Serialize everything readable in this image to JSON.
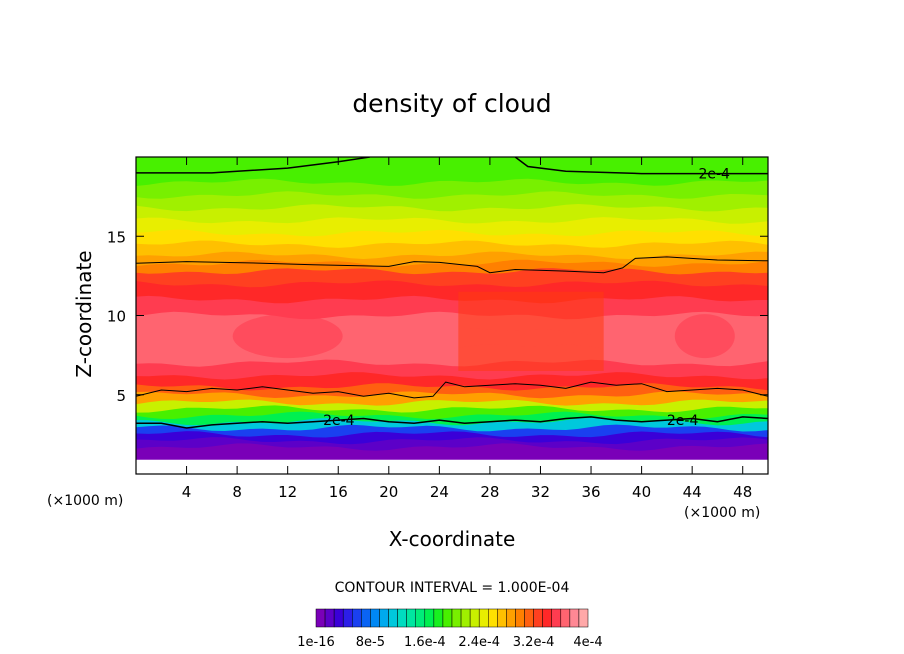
{
  "chart_data": {
    "type": "heatmap",
    "title": "density of cloud",
    "xlabel": "X-coordinate",
    "ylabel": "Z-coordinate",
    "x_unit": "(×1000 m)",
    "y_unit": "(×1000 m)",
    "xlim": [
      0,
      50
    ],
    "ylim": [
      0,
      20
    ],
    "x_ticks": [
      4,
      8,
      12,
      16,
      20,
      24,
      28,
      32,
      36,
      40,
      44,
      48
    ],
    "y_ticks": [
      5,
      10,
      15
    ],
    "grid": false,
    "contour_interval_text": "CONTOUR INTERVAL = 1.000E-04",
    "contour_lines": [
      {
        "value": "2e-4",
        "points": [
          [
            0,
            19.0
          ],
          [
            6,
            19.0
          ],
          [
            12,
            19.3
          ],
          [
            16,
            19.7
          ],
          [
            18.5,
            20.0
          ]
        ],
        "label_at": null
      },
      {
        "value": "2e-4",
        "points": [
          [
            30,
            20.0
          ],
          [
            31,
            19.4
          ],
          [
            34,
            19.1
          ],
          [
            40,
            18.95
          ],
          [
            46,
            18.95
          ],
          [
            50,
            18.95
          ]
        ],
        "label_at": [
          44.5,
          18.95
        ]
      },
      {
        "value": "",
        "points": [
          [
            0,
            13.3
          ],
          [
            4,
            13.4
          ],
          [
            10,
            13.3
          ],
          [
            14,
            13.2
          ],
          [
            20,
            13.1
          ],
          [
            22,
            13.4
          ],
          [
            24,
            13.35
          ],
          [
            27,
            13.1
          ],
          [
            28,
            12.7
          ],
          [
            30,
            12.9
          ],
          [
            34,
            12.8
          ],
          [
            37,
            12.7
          ],
          [
            38.5,
            13.0
          ],
          [
            39.5,
            13.6
          ],
          [
            42,
            13.7
          ],
          [
            46,
            13.5
          ],
          [
            50,
            13.45
          ]
        ],
        "label_at": null
      },
      {
        "value": "",
        "points": [
          [
            0,
            4.9
          ],
          [
            2,
            5.3
          ],
          [
            4,
            5.2
          ],
          [
            6,
            5.4
          ],
          [
            8,
            5.3
          ],
          [
            10,
            5.5
          ],
          [
            12,
            5.3
          ],
          [
            14,
            5.1
          ],
          [
            16,
            5.2
          ],
          [
            18,
            4.9
          ],
          [
            20,
            5.1
          ],
          [
            22,
            4.8
          ],
          [
            23.5,
            4.9
          ],
          [
            24.5,
            5.8
          ],
          [
            26,
            5.5
          ],
          [
            28,
            5.6
          ],
          [
            30,
            5.7
          ],
          [
            32,
            5.6
          ],
          [
            34,
            5.4
          ],
          [
            36,
            5.8
          ],
          [
            38,
            5.6
          ],
          [
            40,
            5.7
          ],
          [
            42,
            5.2
          ],
          [
            44,
            5.3
          ],
          [
            46,
            5.4
          ],
          [
            48,
            5.3
          ],
          [
            50,
            4.9
          ]
        ],
        "label_at": null
      },
      {
        "value": "2e-4",
        "points": [
          [
            0,
            3.2
          ],
          [
            2,
            3.2
          ],
          [
            4,
            2.9
          ],
          [
            6,
            3.1
          ],
          [
            8,
            3.2
          ],
          [
            10,
            3.3
          ],
          [
            12,
            3.2
          ],
          [
            14,
            3.3
          ],
          [
            16,
            3.4
          ],
          [
            18,
            3.5
          ],
          [
            20,
            3.3
          ],
          [
            22,
            3.2
          ],
          [
            24,
            3.4
          ],
          [
            26,
            3.2
          ],
          [
            28,
            3.3
          ],
          [
            30,
            3.4
          ],
          [
            32,
            3.3
          ],
          [
            34,
            3.5
          ],
          [
            36,
            3.6
          ],
          [
            38,
            3.4
          ],
          [
            40,
            3.3
          ],
          [
            42,
            3.4
          ],
          [
            44,
            3.5
          ],
          [
            46,
            3.3
          ],
          [
            48,
            3.6
          ],
          [
            50,
            3.5
          ]
        ],
        "label_at": [
          14.8,
          3.4
        ],
        "label_at_2": [
          42.0,
          3.4
        ]
      }
    ],
    "field_description_values": {
      "z_levels": [
        0.9,
        1.3,
        1.7,
        2.1,
        2.5,
        2.9,
        3.3,
        3.7,
        4.1,
        4.5,
        5.0,
        5.5,
        6.2,
        7.0,
        8.0,
        9.0,
        10.0,
        11.0,
        12.0,
        12.8,
        13.3,
        13.8,
        14.5,
        15.2,
        16.0,
        16.8,
        17.6,
        18.4,
        19.2,
        20.0
      ],
      "values": [
        0.0,
        4e-06,
        8e-06,
        1.6e-05,
        3.2e-05,
        6.4e-05,
        0.00011,
        0.00016,
        0.00019,
        0.00023,
        0.00028,
        0.00031,
        0.00034,
        0.000355,
        0.000365,
        0.00037,
        0.000365,
        0.000355,
        0.00034,
        0.000325,
        0.000305,
        0.00029,
        0.000275,
        0.00026,
        0.000245,
        0.00023,
        0.000215,
        0.000205,
        0.000195,
        0.00019
      ]
    },
    "colorbar": {
      "colors": [
        "#7a00b8",
        "#5c00c8",
        "#3a00d8",
        "#2c1ee8",
        "#1a40f0",
        "#0a64f4",
        "#0088f4",
        "#00aaee",
        "#00c8dc",
        "#00dcc0",
        "#00e6a0",
        "#00ec7a",
        "#00f050",
        "#18f020",
        "#48f000",
        "#78f000",
        "#a0f000",
        "#c8f000",
        "#e8ee00",
        "#ffe000",
        "#ffc000",
        "#ffa000",
        "#ff8000",
        "#ff6010",
        "#ff4020",
        "#ff2828",
        "#ff3c50",
        "#ff6470",
        "#ff8894",
        "#ffa8a8"
      ],
      "tick_labels": [
        "1e-16",
        "8e-5",
        "1.6e-4",
        "2.4e-4",
        "3.2e-4",
        "4e-4"
      ]
    }
  }
}
